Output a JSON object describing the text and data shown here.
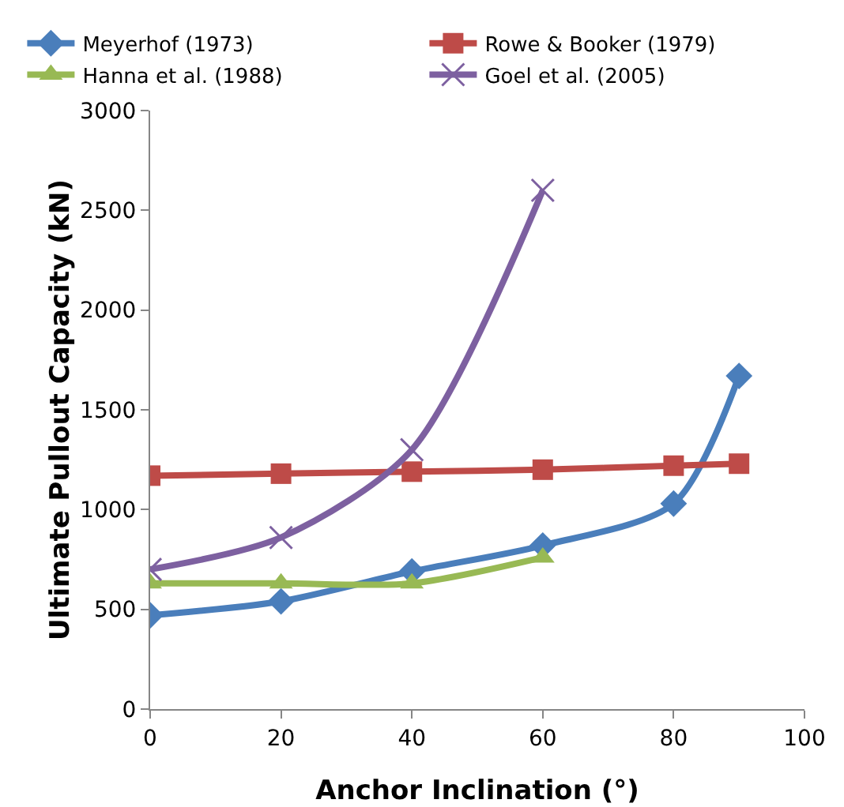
{
  "chart_data": {
    "type": "line",
    "xlabel": "Anchor Inclination (°)",
    "ylabel": "Ultimate Pullout Capacity (kN)",
    "xlim": [
      0,
      100
    ],
    "xticks": [
      0,
      20,
      40,
      60,
      80,
      100
    ],
    "ylim": [
      0,
      3000
    ],
    "yticks": [
      0,
      500,
      1000,
      1500,
      2000,
      2500,
      3000
    ],
    "grid": false,
    "legend": "top",
    "series": [
      {
        "name": "Meyerhof (1973)",
        "color": "#4a7ebb",
        "marker": "diamond",
        "x": [
          0,
          20,
          40,
          60,
          80,
          90
        ],
        "values": [
          470,
          540,
          690,
          820,
          1030,
          1670
        ]
      },
      {
        "name": "Rowe & Booker (1979)",
        "color": "#be4b48",
        "marker": "square",
        "x": [
          0,
          20,
          40,
          60,
          80,
          90
        ],
        "values": [
          1170,
          1180,
          1190,
          1200,
          1220,
          1230
        ]
      },
      {
        "name": "Hanna et al. (1988)",
        "color": "#98b954",
        "marker": "triangle",
        "x": [
          0,
          20,
          40,
          60
        ],
        "values": [
          630,
          630,
          630,
          760
        ]
      },
      {
        "name": "Goel et al. (2005)",
        "color": "#7d60a0",
        "marker": "cross",
        "x": [
          0,
          20,
          40,
          60
        ],
        "values": [
          700,
          860,
          1300,
          2600
        ]
      }
    ]
  }
}
